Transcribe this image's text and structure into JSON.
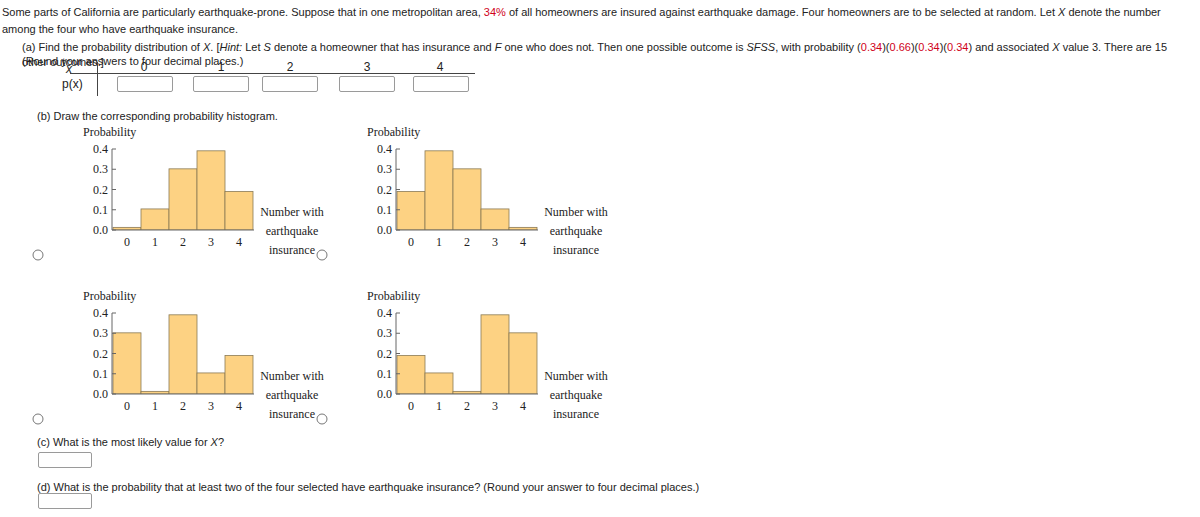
{
  "intro": [
    {
      "text": "Some parts of California are particularly earthquake-prone. Suppose that in one metropolitan area, "
    },
    {
      "text": "34%",
      "color": "#d0021b"
    },
    {
      "text": " of all homeowners are insured against earthquake damage. Four homeowners are to be selected at random. Let "
    },
    {
      "text": "X",
      "italic": true
    },
    {
      "text": " denote the number among the four who have earthquake insurance."
    }
  ],
  "part_a": [
    {
      "text": "(a) Find the probability distribution of "
    },
    {
      "text": "X",
      "italic": true
    },
    {
      "text": ". ["
    },
    {
      "text": "Hint:",
      "italic": true
    },
    {
      "text": " Let "
    },
    {
      "text": "S",
      "italic": true
    },
    {
      "text": " denote a homeowner that has insurance and "
    },
    {
      "text": "F",
      "italic": true
    },
    {
      "text": " one who does not. Then one possible outcome is "
    },
    {
      "text": "SFSS",
      "italic": true
    },
    {
      "text": ", with probability ("
    },
    {
      "text": "0.34",
      "color": "#d0021b"
    },
    {
      "text": ")("
    },
    {
      "text": "0.66",
      "color": "#d0021b"
    },
    {
      "text": ")("
    },
    {
      "text": "0.34",
      "color": "#d0021b"
    },
    {
      "text": ")("
    },
    {
      "text": "0.34",
      "color": "#d0021b"
    },
    {
      "text": ") and associated "
    },
    {
      "text": "X",
      "italic": true
    },
    {
      "text": " value 3. There are 15 other outcomes.]"
    }
  ],
  "part_a_round": "(Round your answers to four decimal places.)",
  "table": {
    "x_header": "x",
    "p_header": "p(x)",
    "columns": [
      0,
      1,
      2,
      3,
      4
    ]
  },
  "part_b": "(b) Draw the corresponding probability histogram.",
  "chart_data": [
    {
      "type": "bar",
      "y_label": "Probability",
      "x_label": "Number with earthquake insurance",
      "categories": [
        0,
        1,
        2,
        3,
        4
      ],
      "values": [
        0.013,
        0.104,
        0.302,
        0.391,
        0.19
      ],
      "color": "#fdd283",
      "ylim": [
        0,
        0.4
      ],
      "yticks": [
        {
          "value": 0,
          "label": "0.0"
        },
        0.1,
        0.2,
        0.3,
        0.4
      ]
    },
    {
      "type": "bar",
      "y_label": "Probability",
      "x_label": "Number with earthquake insurance",
      "categories": [
        0,
        1,
        2,
        3,
        4
      ],
      "values": [
        0.19,
        0.391,
        0.302,
        0.104,
        0.013
      ],
      "color": "#fdd283",
      "ylim": [
        0,
        0.4
      ],
      "yticks": [
        {
          "value": 0,
          "label": "0.0"
        },
        0.1,
        0.2,
        0.3,
        0.4
      ]
    },
    {
      "type": "bar",
      "y_label": "Probability",
      "x_label": "Number with earthquake insurance",
      "categories": [
        0,
        1,
        2,
        3,
        4
      ],
      "values": [
        0.302,
        0.013,
        0.391,
        0.104,
        0.19
      ],
      "color": "#fdd283",
      "ylim": [
        0,
        0.4
      ],
      "yticks": [
        {
          "value": 0,
          "label": "0.0"
        },
        0.1,
        0.2,
        0.3,
        0.4
      ]
    },
    {
      "type": "bar",
      "y_label": "Probability",
      "x_label": "Number with earthquake insurance",
      "categories": [
        0,
        1,
        2,
        3,
        4
      ],
      "values": [
        0.19,
        0.104,
        0.013,
        0.391,
        0.302
      ],
      "color": "#fdd283",
      "ylim": [
        0,
        0.4
      ],
      "yticks": [
        {
          "value": 0,
          "label": "0.0"
        },
        0.1,
        0.2,
        0.3,
        0.4
      ]
    }
  ],
  "part_c": [
    {
      "text": "(c) What is the most likely value for "
    },
    {
      "text": "X",
      "italic": true
    },
    {
      "text": "?"
    }
  ],
  "part_d": "(d) What is the probability that at least two of the four selected have earthquake insurance? (Round your answer to four decimal places.)"
}
